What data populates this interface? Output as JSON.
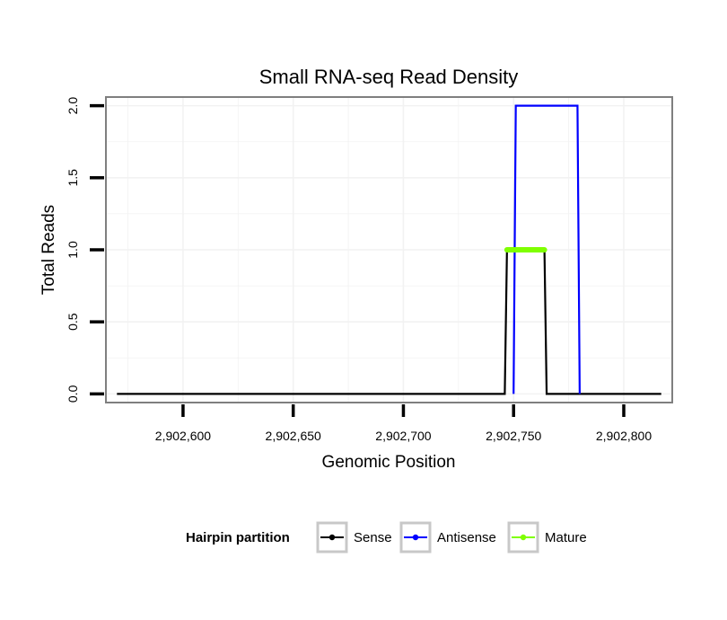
{
  "chart_data": {
    "type": "line",
    "title": "Small RNA-seq Read Density",
    "xlabel": "Genomic Position",
    "ylabel": "Total Reads",
    "xlim": [
      2902565,
      2902822
    ],
    "ylim": [
      -0.06,
      2.06
    ],
    "x_ticks": [
      2902600,
      2902650,
      2902700,
      2902750,
      2902800
    ],
    "x_tick_labels": [
      "2,902,600",
      "2,902,650",
      "2,902,700",
      "2,902,750",
      "2,902,800"
    ],
    "y_ticks": [
      0,
      0.5,
      1,
      1.5,
      2
    ],
    "y_tick_labels": [
      "0.0",
      "0.5",
      "1.0",
      "1.5",
      "2.0"
    ],
    "grid": true,
    "legend": {
      "position": "bottom",
      "title": "Hairpin partition",
      "entries": [
        {
          "name": "Sense",
          "color": "#000000"
        },
        {
          "name": "Antisense",
          "color": "#0000ff"
        },
        {
          "name": "Mature",
          "color": "#7fff00"
        }
      ]
    },
    "series": [
      {
        "name": "Sense",
        "color": "#000000",
        "x": [
          2902570,
          2902746,
          2902747,
          2902764,
          2902765,
          2902817
        ],
        "y": [
          0,
          0,
          1,
          1,
          0,
          0
        ]
      },
      {
        "name": "Antisense",
        "color": "#0000ff",
        "x": [
          2902750,
          2902751,
          2902779,
          2902780
        ],
        "y": [
          0,
          2,
          2,
          0
        ]
      },
      {
        "name": "Mature",
        "color": "#7fff00",
        "x": [
          2902747,
          2902764
        ],
        "y": [
          1,
          1
        ]
      }
    ]
  }
}
